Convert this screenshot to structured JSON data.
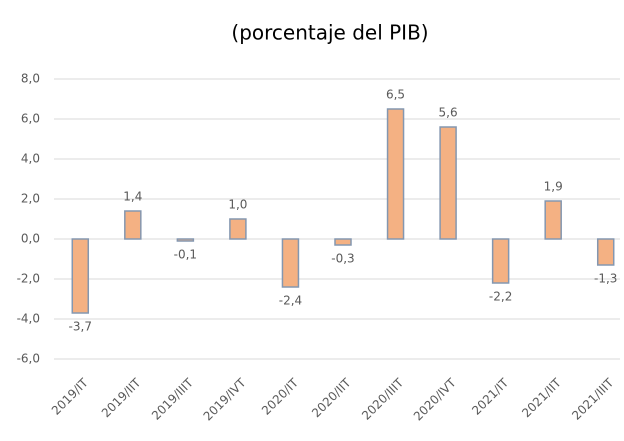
{
  "chart_data": {
    "type": "bar",
    "title": "(porcentaje del PIB)",
    "categories": [
      "2019/IT",
      "2019/IIT",
      "2019/IIIT",
      "2019/IVT",
      "2020/IT",
      "2020/IIT",
      "2020/IIIT",
      "2020/IVT",
      "2021/IT",
      "2021/IIT",
      "2021/IIIT"
    ],
    "values": [
      -3.7,
      1.4,
      -0.1,
      1.0,
      -2.4,
      -0.3,
      6.5,
      5.6,
      -2.2,
      1.9,
      -1.3
    ],
    "value_labels": [
      "-3,7",
      "1,4",
      "-0,1",
      "1,0",
      "-2,4",
      "-0,3",
      "6,5",
      "5,6",
      "-2,2",
      "1,9",
      "-1,3"
    ],
    "color": "#f4b183",
    "edge_color": "#8497b0",
    "ylim": [
      -6,
      8
    ],
    "yticks": [
      {
        "value": -6,
        "label": "-6,0"
      },
      {
        "value": -4,
        "label": "-4,0"
      },
      {
        "value": -2,
        "label": "-2,0"
      },
      {
        "value": 0,
        "label": "0,0"
      },
      {
        "value": 2,
        "label": "2,0"
      },
      {
        "value": 4,
        "label": "4,0"
      },
      {
        "value": 6,
        "label": "6,0"
      },
      {
        "value": 8,
        "label": "8,0"
      }
    ],
    "grid": true
  }
}
